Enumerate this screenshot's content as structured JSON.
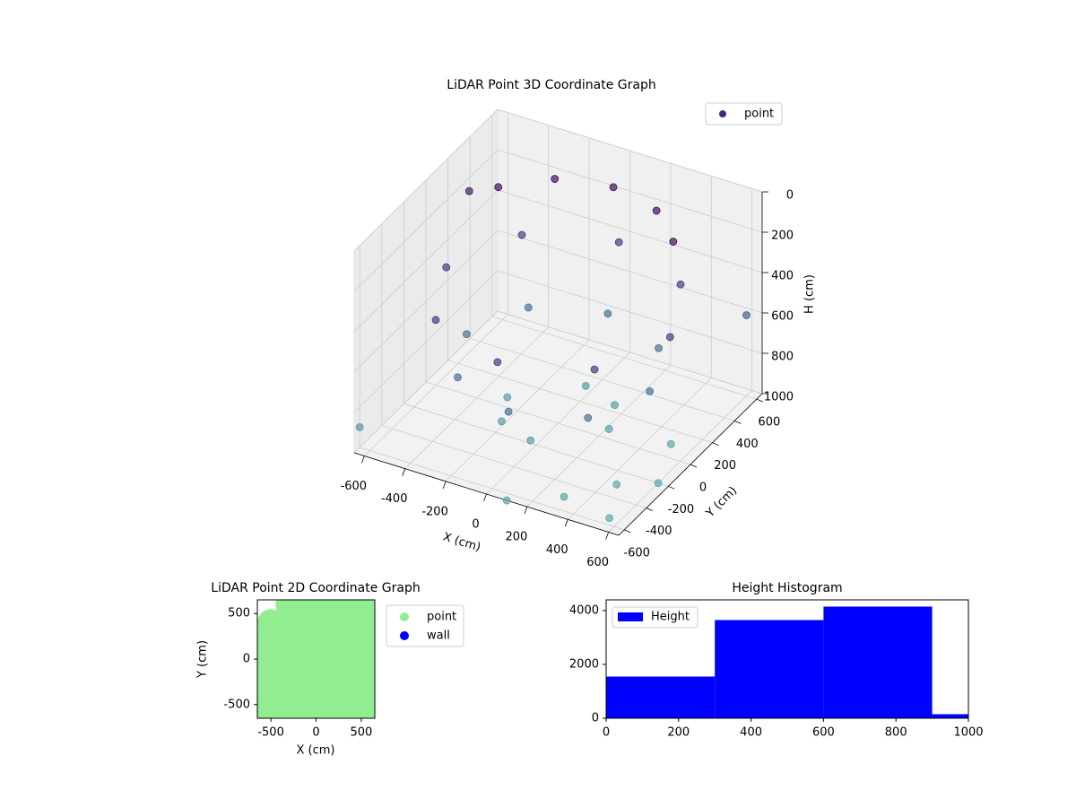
{
  "chart_data": [
    {
      "type": "scatter3d",
      "title": "LiDAR Point 3D Coordinate Graph",
      "xlabel": "X (cm)",
      "ylabel": "Y (cm)",
      "zlabel": "H (cm)",
      "xlim": [
        -650,
        650
      ],
      "ylim": [
        -650,
        650
      ],
      "zlim": [
        1000,
        0
      ],
      "xticks": [
        -600,
        -400,
        -200,
        0,
        200,
        400,
        600
      ],
      "yticks": [
        -600,
        -400,
        -200,
        0,
        200,
        400,
        600
      ],
      "zticks": [
        0,
        200,
        400,
        600,
        800,
        1000
      ],
      "colormap": [
        "#440154",
        "#3b528b",
        "#5fa8a8"
      ],
      "grid": true,
      "legend": "upper right",
      "series": [
        {
          "name": "point",
          "color": "#482878",
          "x": [
            430,
            250,
            0,
            -250,
            -430,
            550,
            390,
            0,
            -390,
            -550,
            -390,
            0,
            390,
            450,
            320,
            0,
            -320,
            -450,
            -320,
            0,
            320,
            250,
            0,
            -250,
            0,
            180,
            -180,
            300,
            450,
            550,
            600,
            500,
            -650,
            -600,
            100,
            600
          ],
          "y": [
            250,
            430,
            500,
            430,
            250,
            0,
            390,
            550,
            390,
            0,
            -390,
            -550,
            -390,
            0,
            320,
            450,
            320,
            0,
            -320,
            -450,
            -320,
            0,
            250,
            0,
            -250,
            180,
            -180,
            -500,
            -300,
            -550,
            -200,
            100,
            -600,
            300,
            -650,
            600
          ],
          "z": [
            100,
            100,
            100,
            100,
            100,
            400,
            400,
            400,
            400,
            400,
            400,
            400,
            400,
            700,
            700,
            700,
            700,
            700,
            700,
            700,
            700,
            950,
            950,
            950,
            950,
            950,
            950,
            1000,
            1000,
            1000,
            1000,
            1000,
            900,
            200,
            1000,
            600
          ]
        }
      ]
    },
    {
      "type": "scatter",
      "title": "LiDAR Point 2D Coordinate Graph",
      "xlabel": "X (cm)",
      "ylabel": "Y (cm)",
      "xlim": [
        -650,
        650
      ],
      "ylim": [
        -650,
        650
      ],
      "xticks": [
        -500,
        0,
        500
      ],
      "yticks": [
        -500,
        0,
        500
      ],
      "legend": "outside right",
      "series": [
        {
          "name": "point",
          "color": "#90ee90",
          "x": [
            -300,
            -100,
            100,
            300,
            500,
            600,
            -500,
            -300,
            -100,
            100,
            300,
            500,
            600,
            -600,
            -400,
            -200,
            0,
            200,
            400,
            600,
            -600,
            -400,
            -200,
            0,
            200,
            400,
            600,
            -600,
            -400,
            -200,
            0,
            200,
            400,
            600,
            -600,
            -400,
            -200,
            0,
            200,
            400,
            600,
            -600,
            -400,
            -200,
            0,
            200,
            400,
            600
          ],
          "y": [
            600,
            600,
            600,
            600,
            600,
            600,
            400,
            400,
            400,
            400,
            400,
            400,
            400,
            200,
            200,
            200,
            200,
            200,
            200,
            200,
            0,
            0,
            0,
            0,
            0,
            0,
            0,
            -200,
            -200,
            -200,
            -200,
            -200,
            -200,
            -200,
            -400,
            -400,
            -400,
            -400,
            -400,
            -400,
            -400,
            -600,
            -600,
            -600,
            -600,
            -600,
            -600,
            -600
          ]
        },
        {
          "name": "wall",
          "color": "#0000ff",
          "x": [],
          "y": []
        }
      ]
    },
    {
      "type": "histogram",
      "title": "Height Histogram",
      "bins": [
        0,
        300,
        600,
        900,
        1000
      ],
      "xlim": [
        0,
        1000
      ],
      "ylim": [
        0,
        4400
      ],
      "xticks": [
        0,
        200,
        400,
        600,
        800,
        1000
      ],
      "yticks": [
        0,
        2000,
        4000
      ],
      "legend": "upper left",
      "series": [
        {
          "name": "Height",
          "color": "#0000ff",
          "values": [
            1550,
            3650,
            4150,
            150
          ]
        }
      ]
    }
  ]
}
